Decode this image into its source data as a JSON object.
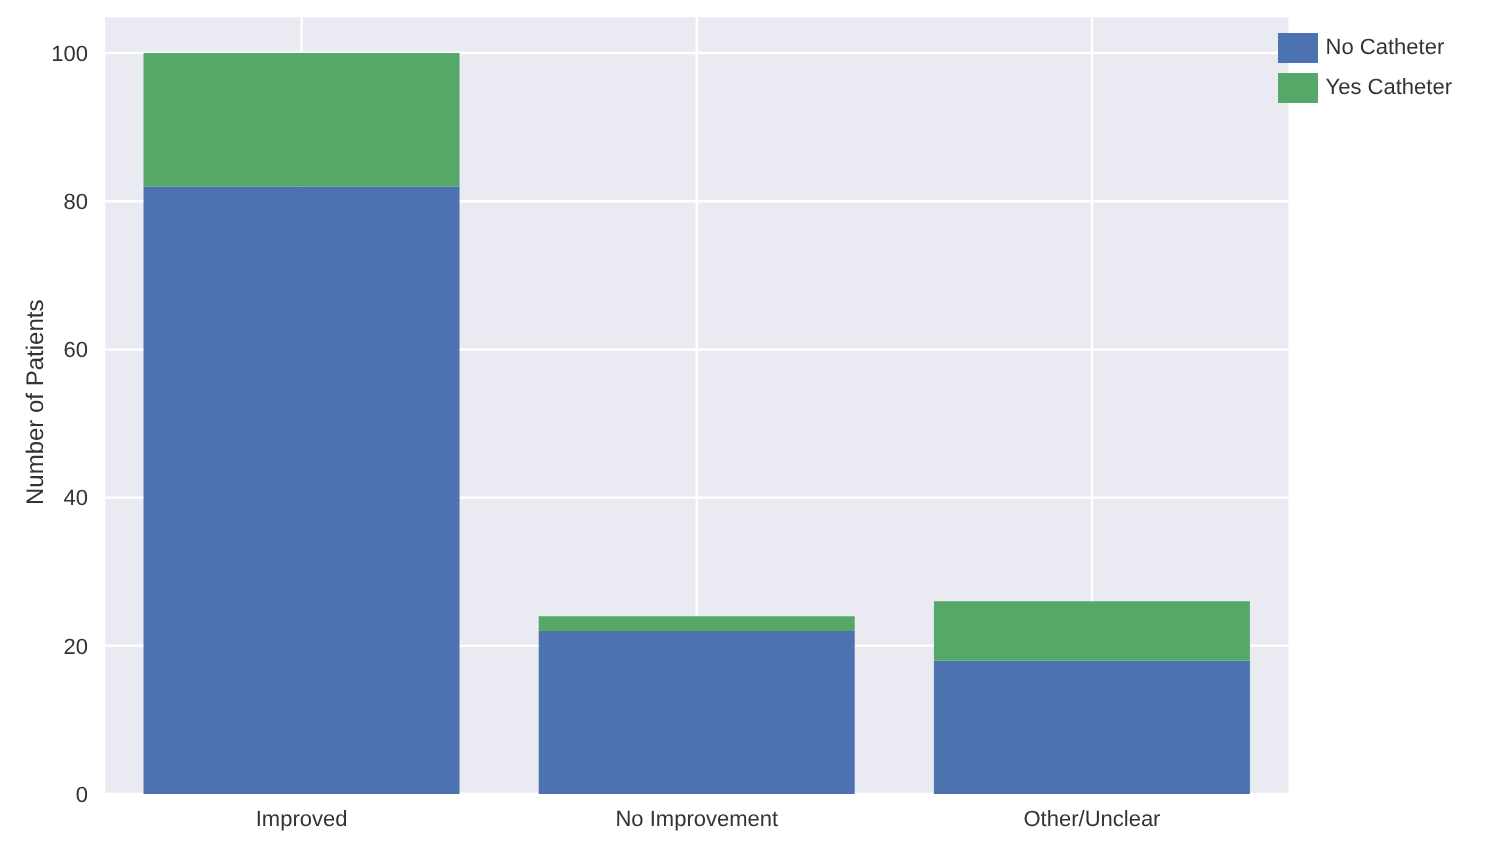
{
  "chart_data": {
    "type": "bar",
    "stacked": true,
    "ylabel": "Number of Patients",
    "categories": [
      "Improved",
      "No Improvement",
      "Other/Unclear"
    ],
    "series": [
      {
        "name": "No Catheter",
        "color": "#4c72b0",
        "values": [
          82,
          22,
          18
        ]
      },
      {
        "name": "Yes Catheter",
        "color": "#55a868",
        "values": [
          18,
          2,
          8
        ]
      }
    ],
    "ylim": [
      0,
      105
    ],
    "yticks": [
      0,
      20,
      40,
      60,
      80,
      100
    ],
    "grid": true,
    "legend": "top right"
  }
}
